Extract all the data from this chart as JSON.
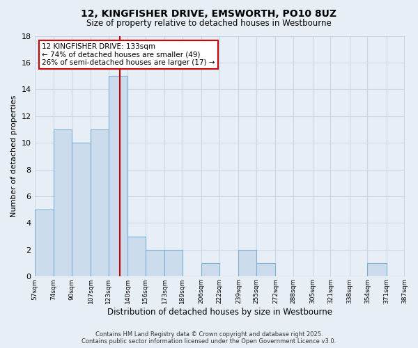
{
  "title": "12, KINGFISHER DRIVE, EMSWORTH, PO10 8UZ",
  "subtitle": "Size of property relative to detached houses in Westbourne",
  "xlabel": "Distribution of detached houses by size in Westbourne",
  "ylabel": "Number of detached properties",
  "bar_color": "#cddcec",
  "bar_edgecolor": "#7bafd4",
  "vline_x": 133,
  "vline_color": "#cc0000",
  "bin_edges": [
    57,
    74,
    90,
    107,
    123,
    140,
    156,
    173,
    189,
    206,
    222,
    239,
    255,
    272,
    288,
    305,
    321,
    338,
    354,
    371,
    387
  ],
  "counts": [
    5,
    11,
    10,
    11,
    15,
    3,
    2,
    2,
    0,
    1,
    0,
    2,
    1,
    0,
    0,
    0,
    0,
    0,
    1,
    0
  ],
  "tick_labels": [
    "57sqm",
    "74sqm",
    "90sqm",
    "107sqm",
    "123sqm",
    "140sqm",
    "156sqm",
    "173sqm",
    "189sqm",
    "206sqm",
    "222sqm",
    "239sqm",
    "255sqm",
    "272sqm",
    "288sqm",
    "305sqm",
    "321sqm",
    "338sqm",
    "354sqm",
    "371sqm",
    "387sqm"
  ],
  "ylim": [
    0,
    18
  ],
  "yticks": [
    0,
    2,
    4,
    6,
    8,
    10,
    12,
    14,
    16,
    18
  ],
  "annotation_title": "12 KINGFISHER DRIVE: 133sqm",
  "annotation_line1": "← 74% of detached houses are smaller (49)",
  "annotation_line2": "26% of semi-detached houses are larger (17) →",
  "annotation_box_facecolor": "#ffffff",
  "annotation_box_edgecolor": "#cc0000",
  "background_color": "#e8eef5",
  "grid_color": "#c8d8e8",
  "footer_line1": "Contains HM Land Registry data © Crown copyright and database right 2025.",
  "footer_line2": "Contains public sector information licensed under the Open Government Licence v3.0."
}
